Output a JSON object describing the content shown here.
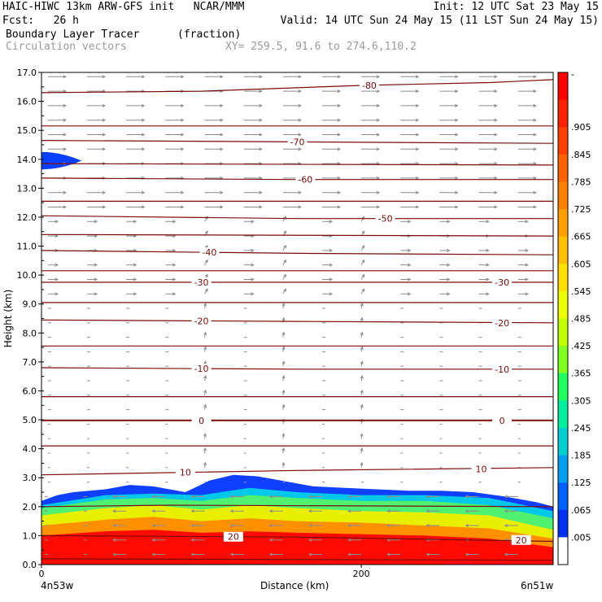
{
  "header": {
    "line1_left": "HAIC-HIWC 13km ARW-GFS init   NCAR/MMM",
    "line1_right": "Init: 12 UTC Sat 23 May 15",
    "line2_left": "Fcst:   26 h",
    "line2_right": "Valid: 14 UTC Sun 24 May 15 (11 LST Sun 24 May 15)",
    "line3_left": "Boundary Layer Tracer",
    "line3_mid": "(fraction)",
    "line4_left": "Circulation vectors",
    "line4_mid": "XY= 259.5, 91.6 to 274.6,110.2"
  },
  "colors": {
    "contour": "#7a0a0a",
    "vector": "#8c8c8c"
  },
  "chart_data": {
    "type": "heatmap",
    "xlabel": "Distance (km)",
    "ylabel": "Height (km)",
    "x_tick_labels": [
      "0",
      "200"
    ],
    "x_ticks": [
      0,
      200
    ],
    "xlim": [
      0,
      320
    ],
    "x_end_labels": {
      "left": "4n53w",
      "right": "6n51w"
    },
    "ylim": [
      0,
      17
    ],
    "y_ticks": [
      0,
      1,
      2,
      3,
      4,
      5,
      6,
      7,
      8,
      9,
      10,
      11,
      12,
      13,
      14,
      15,
      16,
      17
    ],
    "y_tick_labels": [
      "0.0",
      "1.0",
      "2.0",
      "3.0",
      "4.0",
      "5.0",
      "6.0",
      "7.0",
      "8.0",
      "9.0",
      "10.0",
      "11.0",
      "12.0",
      "13.0",
      "14.0",
      "15.0",
      "16.0",
      "17.0"
    ],
    "colorbar": {
      "labels": [
        "-",
        ".905",
        ".845",
        ".785",
        ".725",
        ".665",
        ".605",
        ".545",
        ".485",
        ".425",
        ".365",
        ".305",
        ".245",
        ".185",
        ".125",
        ".065",
        ".005"
      ],
      "colors": [
        "#ff0000",
        "#ff2000",
        "#ff4000",
        "#ff6000",
        "#ff8000",
        "#ffa000",
        "#ffc000",
        "#ffe000",
        "#f0ff00",
        "#c0ff00",
        "#80ff20",
        "#20ff60",
        "#00f0a0",
        "#00d0d0",
        "#00a0f0",
        "#0060ff",
        "#0030f0",
        "#ffffff"
      ]
    },
    "tracer_top_km": {
      "x": [
        0,
        10,
        20,
        40,
        55,
        70,
        90,
        105,
        120,
        135,
        150,
        170,
        190,
        210,
        230,
        250,
        270,
        290,
        310,
        320
      ],
      "y": [
        2.2,
        2.4,
        2.5,
        2.6,
        2.75,
        2.7,
        2.5,
        2.9,
        3.1,
        3.05,
        2.9,
        2.7,
        2.65,
        2.6,
        2.55,
        2.55,
        2.5,
        2.35,
        2.15,
        2.0
      ]
    },
    "tracer_bands_km": {
      "x": [
        0,
        40,
        70,
        100,
        130,
        160,
        200,
        240,
        280,
        320
      ],
      "blue_to_cyan": [
        2.05,
        2.4,
        2.45,
        2.4,
        2.65,
        2.5,
        2.4,
        2.4,
        2.3,
        1.85
      ],
      "cyan_to_green": [
        1.95,
        2.25,
        2.3,
        2.2,
        2.4,
        2.3,
        2.2,
        2.2,
        2.05,
        1.6
      ],
      "green_to_yellow": [
        1.7,
        1.95,
        2.05,
        1.9,
        2.05,
        1.95,
        1.85,
        1.8,
        1.7,
        1.2
      ],
      "yellow_to_orange": [
        1.35,
        1.55,
        1.65,
        1.5,
        1.6,
        1.5,
        1.45,
        1.35,
        1.25,
        0.9
      ],
      "orange_to_red": [
        1.0,
        1.15,
        1.2,
        1.1,
        1.15,
        1.1,
        1.05,
        1.0,
        0.9,
        0.6
      ]
    },
    "upper_blob_km": {
      "x_end": 25,
      "y_center": 13.95,
      "half_height": 0.3
    },
    "isotherms": [
      {
        "value": "-80",
        "label_x": 205,
        "x": [
          0,
          100,
          200,
          280,
          320
        ],
        "y": [
          16.3,
          16.35,
          16.55,
          16.65,
          16.75
        ]
      },
      {
        "value": "",
        "x": [
          0,
          320
        ],
        "y": [
          15.15,
          15.15
        ]
      },
      {
        "value": "-70",
        "label_x": 160,
        "x": [
          0,
          160,
          320
        ],
        "y": [
          14.65,
          14.6,
          14.55
        ]
      },
      {
        "value": "",
        "x": [
          0,
          320
        ],
        "y": [
          13.85,
          13.8
        ]
      },
      {
        "value": "-60",
        "label_x": 165,
        "x": [
          0,
          160,
          320
        ],
        "y": [
          13.35,
          13.3,
          13.3
        ]
      },
      {
        "value": "",
        "x": [
          0,
          320
        ],
        "y": [
          12.55,
          12.55
        ]
      },
      {
        "value": "-50",
        "label_x": 215,
        "x": [
          0,
          160,
          320
        ],
        "y": [
          12.05,
          11.95,
          11.95
        ]
      },
      {
        "value": "",
        "x": [
          0,
          320
        ],
        "y": [
          11.4,
          11.35
        ]
      },
      {
        "value": "-40",
        "label_x": 105,
        "x": [
          0,
          160,
          320
        ],
        "y": [
          10.85,
          10.75,
          10.7
        ]
      },
      {
        "value": "",
        "x": [
          0,
          320
        ],
        "y": [
          10.15,
          10.15
        ]
      },
      {
        "value": "-30",
        "label_x": 100,
        "x": [
          0,
          160,
          320
        ],
        "y": [
          9.75,
          9.75,
          9.75
        ]
      },
      {
        "value": "",
        "x": [
          0,
          320
        ],
        "y": [
          9.05,
          9.05
        ]
      },
      {
        "value": "-20",
        "label_x": 100,
        "x": [
          0,
          160,
          320
        ],
        "y": [
          8.45,
          8.4,
          8.35
        ]
      },
      {
        "value": "",
        "x": [
          0,
          320
        ],
        "y": [
          7.55,
          7.55
        ]
      },
      {
        "value": "-10",
        "label_x": 100,
        "x": [
          0,
          160,
          320
        ],
        "y": [
          6.8,
          6.75,
          6.75
        ]
      },
      {
        "value": "",
        "x": [
          0,
          320
        ],
        "y": [
          5.8,
          5.8
        ]
      },
      {
        "value": "0",
        "label_x": 100,
        "x": [
          0,
          160,
          320
        ],
        "y": [
          4.98,
          4.98,
          4.98
        ]
      },
      {
        "value": "",
        "x": [
          0,
          320
        ],
        "y": [
          4.1,
          4.1
        ]
      },
      {
        "value": "10",
        "label_x": 90,
        "x": [
          0,
          160,
          320
        ],
        "y": [
          3.1,
          3.25,
          3.35
        ]
      },
      {
        "value": "",
        "x": [
          0,
          80,
          320
        ],
        "y": [
          2.0,
          2.05,
          2.0
        ]
      },
      {
        "value": "20",
        "label_x": 120,
        "x": [
          0,
          160,
          320
        ],
        "y": [
          1.0,
          0.95,
          0.8
        ]
      },
      {
        "value": "",
        "x": [
          0,
          320
        ],
        "y": [
          0.2,
          0.15
        ]
      }
    ],
    "isotherm_label_pairs": [
      {
        "value": "-30",
        "label_x": 288,
        "y": 9.75
      },
      {
        "value": "-20",
        "label_x": 288,
        "y": 8.35
      },
      {
        "value": "-10",
        "label_x": 288,
        "y": 6.75
      },
      {
        "value": "0",
        "label_x": 288,
        "y": 4.98
      },
      {
        "value": "10",
        "label_x": 275,
        "y": 3.3
      },
      {
        "value": "20",
        "label_x": 300,
        "y": 0.85
      }
    ]
  }
}
